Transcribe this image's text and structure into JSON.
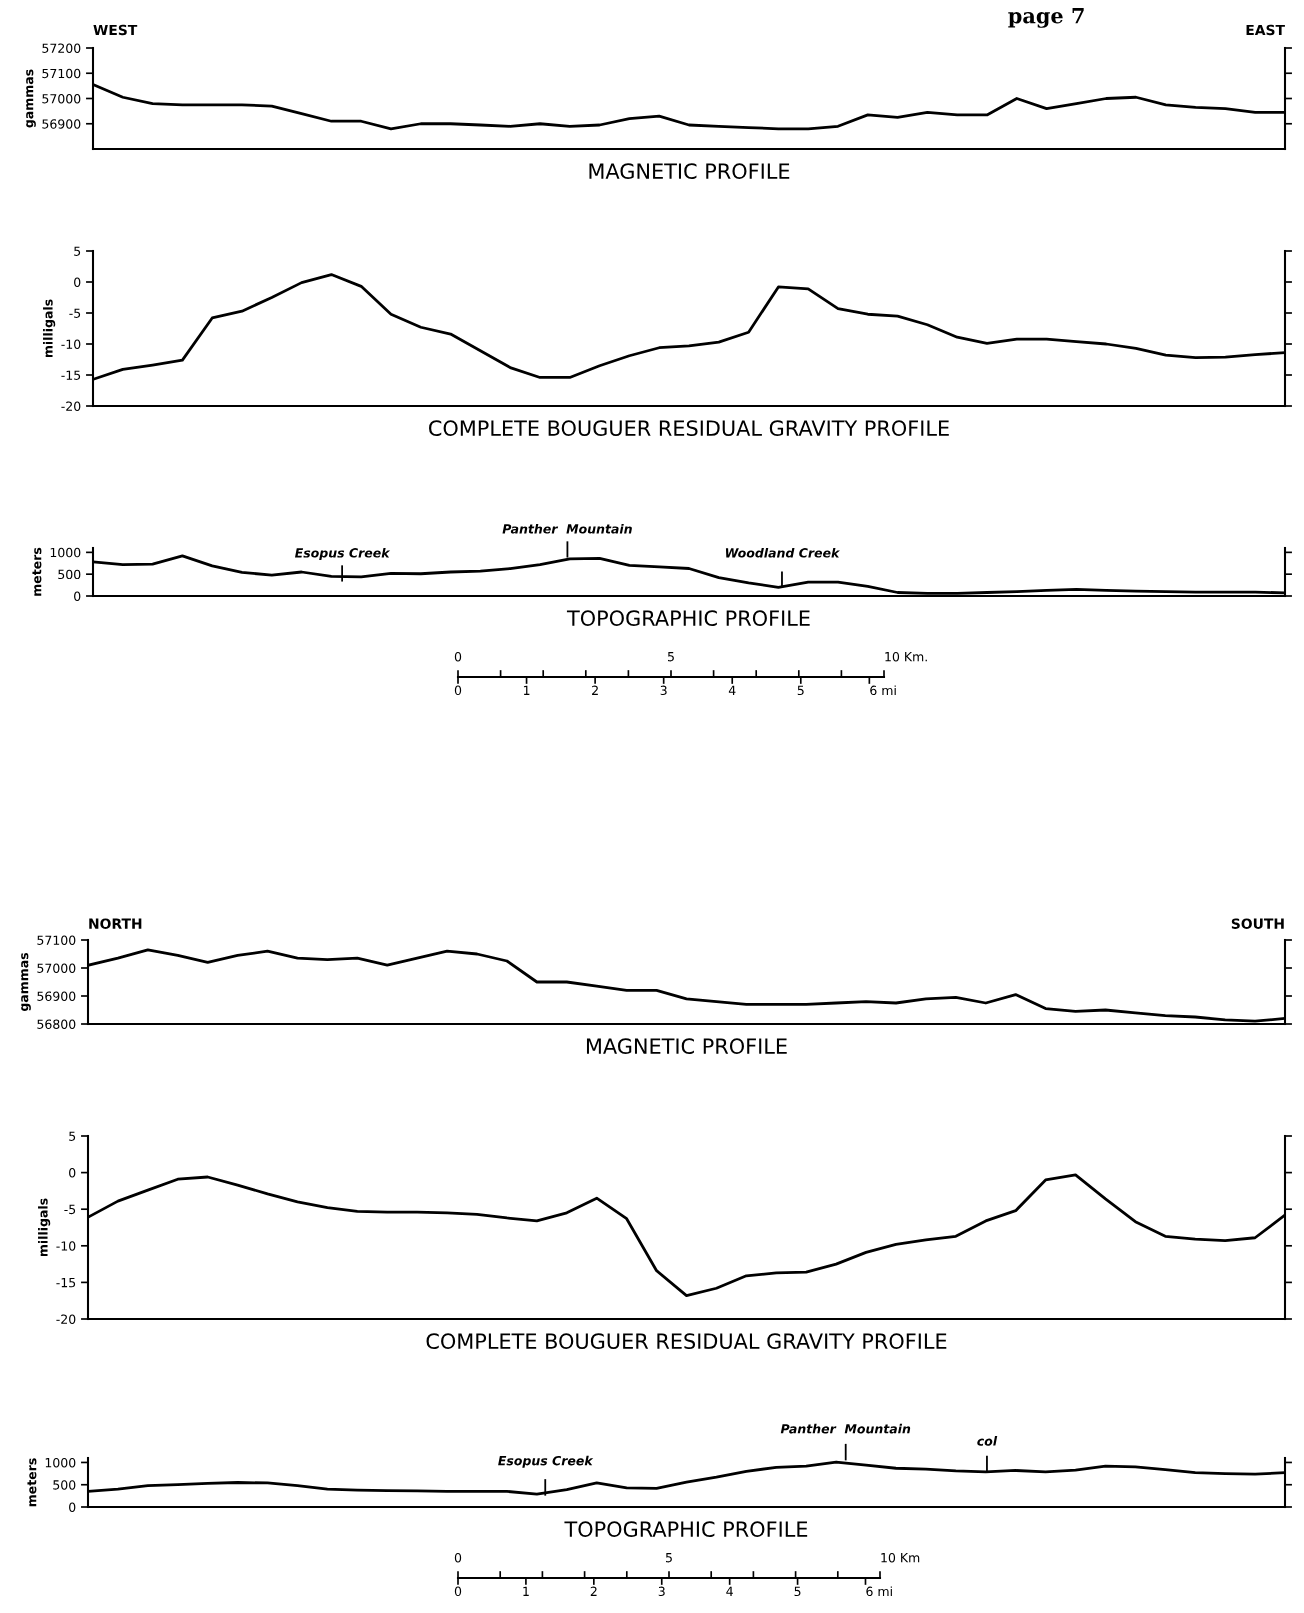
{
  "chart_data": [
    {
      "type": "line",
      "xlabel": "MAGNETIC PROFILE",
      "ylabel": "gammas",
      "ylim": [
        56800,
        57200
      ],
      "yticks": [
        56900,
        57000,
        57100,
        57200
      ],
      "tick_labels": "y",
      "annotations": [
        "WEST",
        "EAST",
        "page 7"
      ],
      "categories": [
        null,
        null,
        null,
        null,
        null,
        null,
        null,
        null,
        null,
        null,
        null,
        null,
        null,
        null,
        null,
        null,
        null,
        null,
        null,
        null,
        null,
        null,
        null,
        null,
        null,
        null,
        null,
        null,
        null,
        null,
        null,
        null,
        null,
        null,
        null,
        null,
        null,
        null,
        null,
        null,
        null
      ],
      "series": [
        {
          "color": "#000000",
          "values": [
            57055,
            57005,
            56980,
            56975,
            56975,
            56975,
            56970,
            56940,
            56910,
            56910,
            56880,
            56900,
            56900,
            56895,
            56890,
            56900,
            56890,
            56895,
            56920,
            56930,
            56895,
            56890,
            56885,
            56880,
            56880,
            56890,
            56935,
            56925,
            56945,
            56935,
            56935,
            57000,
            56960,
            56980,
            57000,
            57005,
            56975,
            56965,
            56960,
            56945,
            56945
          ]
        }
      ]
    },
    {
      "type": "line",
      "xlabel": "COMPLETE BOUGUER RESIDUAL GRAVITY PROFILE",
      "ylabel": "milligals",
      "ylim": [
        -20,
        5
      ],
      "yticks": [
        {
          "value": -20,
          "label": "-20"
        },
        {
          "value": -15,
          "label": "-15"
        },
        {
          "value": -10,
          "label": "-10"
        },
        {
          "value": -5,
          "label": "-5"
        },
        0,
        5
      ],
      "tick_labels": "y",
      "categories": [
        null,
        null,
        null,
        null,
        null,
        null,
        null,
        null,
        null,
        null,
        null,
        null,
        null,
        null,
        null,
        null,
        null,
        null,
        null,
        null,
        null,
        null,
        null,
        null,
        null,
        null,
        null,
        null,
        null,
        null,
        null,
        null,
        null,
        null,
        null,
        null,
        null,
        null,
        null,
        null,
        null
      ],
      "series": [
        {
          "color": "#000000",
          "values": [
            -15.7,
            -14.1,
            -13.4,
            -12.6,
            -5.8,
            -4.7,
            -2.5,
            -0.1,
            1.2,
            -0.7,
            -5.2,
            -7.3,
            -8.4,
            -11.1,
            -13.8,
            -15.4,
            -15.4,
            -13.5,
            -11.9,
            -10.6,
            -10.3,
            -9.7,
            -8.1,
            -0.8,
            -1.1,
            -4.3,
            -5.2,
            -5.5,
            -6.9,
            -8.9,
            -9.9,
            -9.2,
            -9.2,
            -9.6,
            -10.0,
            -10.7,
            -11.8,
            -12.2,
            -12.1,
            -11.7,
            -11.4
          ]
        }
      ]
    },
    {
      "type": "line",
      "xlabel": "TOPOGRAPHIC PROFILE",
      "ylabel": "meters",
      "ylim": [
        0,
        1100
      ],
      "yticks": [
        0,
        500,
        1000
      ],
      "tick_labels": "y",
      "annotations": [
        "Esopus Creek",
        "Panther  Mountain",
        "Woodland Creek",
        "0",
        "5",
        "10 Km.",
        "0",
        "1",
        "2",
        "3",
        "4",
        "5",
        "6 mi"
      ],
      "categories": [
        null,
        null,
        null,
        null,
        null,
        null,
        null,
        null,
        null,
        null,
        null,
        null,
        null,
        null,
        null,
        null,
        null,
        null,
        null,
        null,
        null,
        null,
        null,
        null,
        null,
        null,
        null,
        null,
        null,
        null,
        null,
        null,
        null,
        null,
        null,
        null,
        null,
        null,
        null,
        null,
        null
      ],
      "series": [
        {
          "color": "#000000",
          "values": [
            780,
            720,
            730,
            920,
            690,
            540,
            480,
            550,
            450,
            440,
            520,
            510,
            550,
            570,
            630,
            720,
            850,
            860,
            700,
            670,
            630,
            420,
            300,
            200,
            320,
            320,
            220,
            80,
            60,
            60,
            80,
            100,
            130,
            150,
            130,
            110,
            100,
            90,
            90,
            90,
            70
          ]
        }
      ]
    },
    {
      "type": "line",
      "xlabel": "MAGNETIC PROFILE",
      "ylabel": "gammas",
      "ylim": [
        56800,
        57100
      ],
      "yticks": [
        56800,
        56900,
        57000,
        57100
      ],
      "tick_labels": "y",
      "annotations": [
        "NORTH",
        "SOUTH"
      ],
      "categories": [
        null,
        null,
        null,
        null,
        null,
        null,
        null,
        null,
        null,
        null,
        null,
        null,
        null,
        null,
        null,
        null,
        null,
        null,
        null,
        null,
        null,
        null,
        null,
        null,
        null,
        null,
        null,
        null,
        null,
        null,
        null,
        null,
        null,
        null,
        null,
        null,
        null,
        null,
        null,
        null,
        null
      ],
      "series": [
        {
          "color": "#000000",
          "values": [
            57010,
            57035,
            57065,
            57045,
            57020,
            57045,
            57060,
            57035,
            57030,
            57035,
            57010,
            57035,
            57060,
            57050,
            57025,
            56950,
            56950,
            56935,
            56920,
            56920,
            56890,
            56880,
            56870,
            56870,
            56870,
            56875,
            56880,
            56875,
            56890,
            56895,
            56875,
            56905,
            56855,
            56845,
            56850,
            56840,
            56830,
            56825,
            56815,
            56810,
            56820
          ]
        }
      ]
    },
    {
      "type": "line",
      "xlabel": "COMPLETE BOUGUER RESIDUAL GRAVITY PROFILE",
      "ylabel": "milligals",
      "ylim": [
        -20,
        5
      ],
      "yticks": [
        {
          "value": -20,
          "label": "-20"
        },
        {
          "value": -15,
          "label": "-15"
        },
        {
          "value": -10,
          "label": "-10"
        },
        {
          "value": -5,
          "label": "-5"
        },
        0,
        5
      ],
      "tick_labels": "y",
      "categories": [
        null,
        null,
        null,
        null,
        null,
        null,
        null,
        null,
        null,
        null,
        null,
        null,
        null,
        null,
        null,
        null,
        null,
        null,
        null,
        null,
        null,
        null,
        null,
        null,
        null,
        null,
        null,
        null,
        null,
        null,
        null,
        null,
        null,
        null,
        null,
        null,
        null,
        null,
        null,
        null,
        null
      ],
      "series": [
        {
          "color": "#000000",
          "values": [
            -6.1,
            -3.9,
            -2.4,
            -0.9,
            -0.6,
            -1.7,
            -2.9,
            -4.0,
            -4.8,
            -5.3,
            -5.4,
            -5.4,
            -5.5,
            -5.7,
            -6.2,
            -6.6,
            -5.5,
            -3.5,
            -6.3,
            -13.4,
            -16.8,
            -15.8,
            -14.1,
            -13.7,
            -13.6,
            -12.5,
            -10.9,
            -9.8,
            -9.2,
            -8.7,
            -6.6,
            -5.2,
            -1.0,
            -0.3,
            -3.6,
            -6.7,
            -8.7,
            -9.1,
            -9.3,
            -8.9,
            -5.8
          ]
        }
      ]
    },
    {
      "type": "line",
      "xlabel": "TOPOGRAPHIC PROFILE",
      "ylabel": "meters",
      "ylim": [
        0,
        1100
      ],
      "yticks": [
        0,
        500,
        1000
      ],
      "tick_labels": "y",
      "annotations": [
        "Esopus Creek",
        "Panther  Mountain",
        "col",
        "0",
        "5",
        "10 Km",
        "0",
        "1",
        "2",
        "3",
        "4",
        "5",
        "6 mi"
      ],
      "categories": [
        null,
        null,
        null,
        null,
        null,
        null,
        null,
        null,
        null,
        null,
        null,
        null,
        null,
        null,
        null,
        null,
        null,
        null,
        null,
        null,
        null,
        null,
        null,
        null,
        null,
        null,
        null,
        null,
        null,
        null,
        null,
        null,
        null,
        null,
        null,
        null,
        null,
        null,
        null,
        null,
        null
      ],
      "series": [
        {
          "color": "#000000",
          "values": [
            350,
            400,
            480,
            500,
            530,
            550,
            540,
            480,
            400,
            380,
            370,
            360,
            350,
            350,
            350,
            290,
            390,
            540,
            430,
            420,
            560,
            670,
            800,
            890,
            920,
            1010,
            940,
            870,
            850,
            810,
            790,
            820,
            790,
            830,
            920,
            900,
            840,
            770,
            750,
            740,
            770
          ]
        }
      ]
    }
  ]
}
